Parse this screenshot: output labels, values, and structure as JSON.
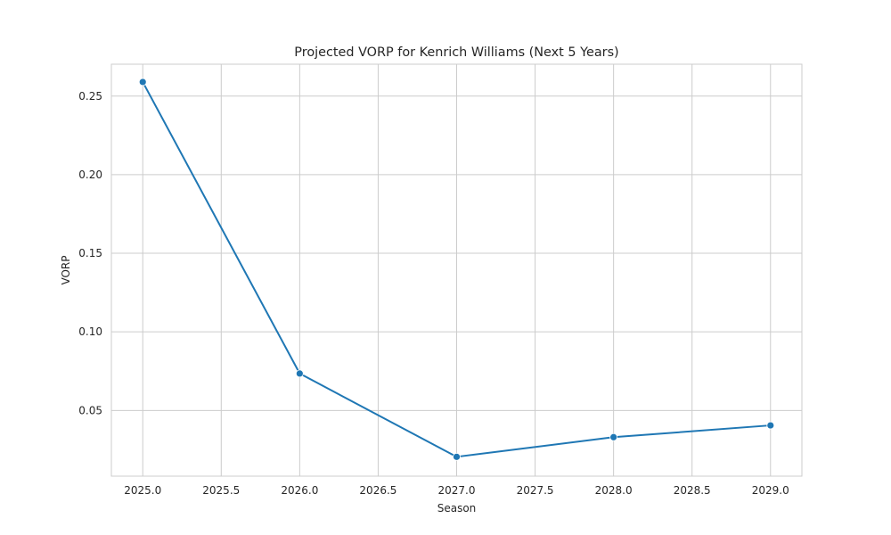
{
  "chart_data": {
    "type": "line",
    "title": "Projected VORP for Kenrich Williams (Next 5 Years)",
    "xlabel": "Season",
    "ylabel": "VORP",
    "x": [
      2025.0,
      2026.0,
      2027.0,
      2028.0,
      2029.0
    ],
    "series": [
      {
        "values": [
          0.259,
          0.0735,
          0.0205,
          0.033,
          0.0405
        ]
      }
    ],
    "xlim": [
      2024.8,
      2029.2
    ],
    "ylim": [
      0.0082,
      0.2703
    ],
    "xticks": [
      "2025.0",
      "2025.5",
      "2026.0",
      "2026.5",
      "2027.0",
      "2027.5",
      "2028.0",
      "2028.5",
      "2029.0"
    ],
    "yticks": [
      "0.05",
      "0.10",
      "0.15",
      "0.20",
      "0.25"
    ],
    "grid": true,
    "line_color": "#1f77b4",
    "grid_color": "#cccccc"
  }
}
